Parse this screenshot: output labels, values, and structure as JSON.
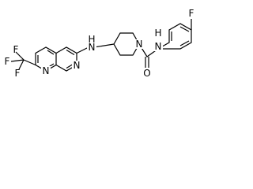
{
  "atoms": [
    {
      "label": "F"
    },
    {
      "label": "F"
    },
    {
      "label": "F"
    },
    {
      "label": "N"
    },
    {
      "label": "N"
    },
    {
      "label": "H"
    },
    {
      "label": "N"
    },
    {
      "label": "N"
    },
    {
      "label": "O"
    },
    {
      "label": "H"
    },
    {
      "label": "N"
    },
    {
      "label": "F"
    }
  ]
}
